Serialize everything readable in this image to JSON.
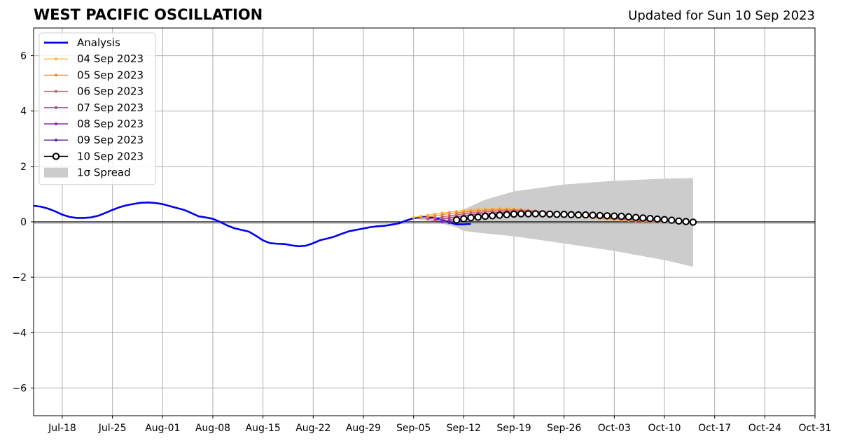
{
  "header": {
    "title": "WEST PACIFIC OSCILLATION",
    "updated": "Updated for Sun 10 Sep 2023"
  },
  "chart_data": {
    "type": "line",
    "title": "WEST PACIFIC OSCILLATION",
    "subtitle": "Updated for Sun 10 Sep 2023",
    "xlabel": "",
    "ylabel": "",
    "x_range": [
      "2023-07-14",
      "2023-10-31"
    ],
    "ylim": [
      -7,
      7
    ],
    "x_ticks": [
      {
        "date": "2023-07-18",
        "label": "Jul-18"
      },
      {
        "date": "2023-07-25",
        "label": "Jul-25"
      },
      {
        "date": "2023-08-01",
        "label": "Aug-01"
      },
      {
        "date": "2023-08-08",
        "label": "Aug-08"
      },
      {
        "date": "2023-08-15",
        "label": "Aug-15"
      },
      {
        "date": "2023-08-22",
        "label": "Aug-22"
      },
      {
        "date": "2023-08-29",
        "label": "Aug-29"
      },
      {
        "date": "2023-09-05",
        "label": "Sep-05"
      },
      {
        "date": "2023-09-12",
        "label": "Sep-12"
      },
      {
        "date": "2023-09-19",
        "label": "Sep-19"
      },
      {
        "date": "2023-09-26",
        "label": "Sep-26"
      },
      {
        "date": "2023-10-03",
        "label": "Oct-03"
      },
      {
        "date": "2023-10-10",
        "label": "Oct-10"
      },
      {
        "date": "2023-10-17",
        "label": "Oct-17"
      },
      {
        "date": "2023-10-24",
        "label": "Oct-24"
      },
      {
        "date": "2023-10-31",
        "label": "Oct-31"
      }
    ],
    "y_ticks": [
      {
        "value": -6,
        "label": "−6"
      },
      {
        "value": -4,
        "label": "−4"
      },
      {
        "value": -2,
        "label": "−2"
      },
      {
        "value": 0,
        "label": "0"
      },
      {
        "value": 2,
        "label": "2"
      },
      {
        "value": 4,
        "label": "4"
      },
      {
        "value": 6,
        "label": "6"
      }
    ],
    "grid": true,
    "zero_line": true,
    "legend_position": "top-left",
    "analysis": {
      "name": "Analysis",
      "color": "#0000ee",
      "start_date": "2023-07-14",
      "values": [
        0.58,
        0.55,
        0.48,
        0.38,
        0.26,
        0.18,
        0.14,
        0.14,
        0.16,
        0.22,
        0.32,
        0.43,
        0.53,
        0.6,
        0.65,
        0.69,
        0.7,
        0.68,
        0.64,
        0.57,
        0.5,
        0.43,
        0.32,
        0.2,
        0.16,
        0.11,
        0.0,
        -0.13,
        -0.23,
        -0.29,
        -0.35,
        -0.5,
        -0.67,
        -0.77,
        -0.79,
        -0.8,
        -0.85,
        -0.88,
        -0.86,
        -0.77,
        -0.66,
        -0.6,
        -0.53,
        -0.43,
        -0.34,
        -0.29,
        -0.24,
        -0.19,
        -0.16,
        -0.14,
        -0.1,
        -0.05,
        0.05,
        0.13,
        0.17,
        0.17,
        0.14,
        0.06,
        -0.02,
        -0.09,
        -0.09,
        -0.07
      ]
    },
    "forecasts": [
      {
        "name": "04 Sep 2023",
        "color": "#f6b83a",
        "start_date": "2023-09-05",
        "values": [
          0.16,
          0.2,
          0.24,
          0.28,
          0.32,
          0.35,
          0.38,
          0.41,
          0.43,
          0.45,
          0.46,
          0.47,
          0.48,
          0.48,
          0.47,
          0.45,
          0.42,
          0.38,
          0.34,
          0.3,
          0.27,
          0.25,
          0.22,
          0.2,
          0.18,
          0.15,
          0.12,
          0.1,
          0.08,
          0.06,
          0.05,
          0.04,
          0.02,
          0.02,
          0.0
        ]
      },
      {
        "name": "05 Sep 2023",
        "color": "#f08a3a",
        "start_date": "2023-09-06",
        "values": [
          0.14,
          0.18,
          0.22,
          0.26,
          0.3,
          0.33,
          0.36,
          0.38,
          0.4,
          0.42,
          0.43,
          0.44,
          0.44,
          0.44,
          0.43,
          0.41,
          0.38,
          0.35,
          0.32,
          0.29,
          0.26,
          0.23,
          0.21,
          0.18,
          0.16,
          0.14,
          0.12,
          0.1,
          0.08,
          0.06,
          0.04,
          0.03,
          0.02,
          0.01,
          0.0
        ]
      },
      {
        "name": "06 Sep 2023",
        "color": "#d9566b",
        "start_date": "2023-09-07",
        "values": [
          0.1,
          0.14,
          0.18,
          0.22,
          0.26,
          0.29,
          0.32,
          0.34,
          0.36,
          0.38,
          0.39,
          0.4,
          0.41,
          0.41,
          0.4,
          0.39,
          0.37,
          0.34,
          0.31,
          0.28,
          0.25,
          0.23,
          0.2,
          0.18,
          0.16,
          0.14,
          0.12,
          0.1,
          0.08,
          0.06,
          0.04,
          0.03,
          0.02,
          0.01,
          0.0
        ]
      },
      {
        "name": "07 Sep 2023",
        "color": "#b53b8e",
        "start_date": "2023-09-08",
        "values": [
          0.05,
          0.1,
          0.14,
          0.18,
          0.22,
          0.25,
          0.28,
          0.3,
          0.32,
          0.34,
          0.35,
          0.36,
          0.36,
          0.36,
          0.36,
          0.35,
          0.33,
          0.31,
          0.29,
          0.27,
          0.25,
          0.23,
          0.21,
          0.19,
          0.17,
          0.15,
          0.13,
          0.11,
          0.09,
          0.07,
          0.05,
          0.04,
          0.03,
          0.02,
          0.01
        ]
      },
      {
        "name": "08 Sep 2023",
        "color": "#8a2aa8",
        "start_date": "2023-09-09",
        "values": [
          0.0,
          0.05,
          0.1,
          0.14,
          0.18,
          0.21,
          0.24,
          0.26,
          0.28,
          0.3,
          0.31,
          0.32,
          0.32,
          0.32,
          0.32,
          0.31,
          0.3,
          0.29,
          0.28,
          0.27,
          0.25,
          0.23,
          0.21,
          0.19,
          0.17,
          0.15,
          0.13,
          0.11,
          0.09,
          0.07,
          0.05,
          0.04,
          0.03,
          0.02,
          0.01
        ]
      },
      {
        "name": "09 Sep 2023",
        "color": "#5a1fa0",
        "start_date": "2023-09-10",
        "values": [
          -0.03,
          0.03,
          0.08,
          0.12,
          0.16,
          0.19,
          0.22,
          0.24,
          0.26,
          0.27,
          0.28,
          0.29,
          0.3,
          0.3,
          0.3,
          0.29,
          0.28,
          0.27,
          0.26,
          0.25,
          0.24,
          0.22,
          0.2,
          0.18,
          0.16,
          0.14,
          0.12,
          0.1,
          0.08,
          0.06,
          0.04,
          0.03,
          0.02,
          0.01,
          0.0
        ]
      },
      {
        "name": "10 Sep 2023",
        "color": "#000000",
        "start_date": "2023-09-11",
        "values": [
          0.07,
          0.11,
          0.15,
          0.17,
          0.2,
          0.22,
          0.24,
          0.26,
          0.28,
          0.29,
          0.29,
          0.29,
          0.29,
          0.28,
          0.27,
          0.27,
          0.26,
          0.25,
          0.25,
          0.24,
          0.23,
          0.22,
          0.21,
          0.2,
          0.18,
          0.16,
          0.14,
          0.12,
          0.1,
          0.08,
          0.06,
          0.03,
          0.01,
          -0.01
        ]
      }
    ],
    "spread": {
      "name": "1σ Spread",
      "color": "#cccccc",
      "dates": [
        "2023-09-05",
        "2023-09-08",
        "2023-09-11",
        "2023-09-12",
        "2023-09-15",
        "2023-09-19",
        "2023-09-26",
        "2023-10-03",
        "2023-10-10",
        "2023-10-14"
      ],
      "upper": [
        0.12,
        0.15,
        0.25,
        0.45,
        0.8,
        1.1,
        1.35,
        1.48,
        1.56,
        1.58
      ],
      "lower": [
        0.12,
        0.0,
        -0.2,
        -0.33,
        -0.42,
        -0.52,
        -0.78,
        -1.05,
        -1.38,
        -1.62
      ]
    },
    "legend": [
      {
        "label": "Analysis",
        "color": "#0000ee",
        "kind": "line"
      },
      {
        "label": "04 Sep 2023",
        "color": "#f6b83a",
        "kind": "marker-line"
      },
      {
        "label": "05 Sep 2023",
        "color": "#f08a3a",
        "kind": "marker-line"
      },
      {
        "label": "06 Sep 2023",
        "color": "#d9566b",
        "kind": "marker-line"
      },
      {
        "label": "07 Sep 2023",
        "color": "#b53b8e",
        "kind": "marker-line"
      },
      {
        "label": "08 Sep 2023",
        "color": "#8a2aa8",
        "kind": "marker-line"
      },
      {
        "label": "09 Sep 2023",
        "color": "#5a1fa0",
        "kind": "marker-line"
      },
      {
        "label": "10 Sep 2023",
        "color": "#000000",
        "kind": "open-circle"
      },
      {
        "label": "1σ Spread",
        "color": "#cccccc",
        "kind": "patch"
      }
    ]
  }
}
